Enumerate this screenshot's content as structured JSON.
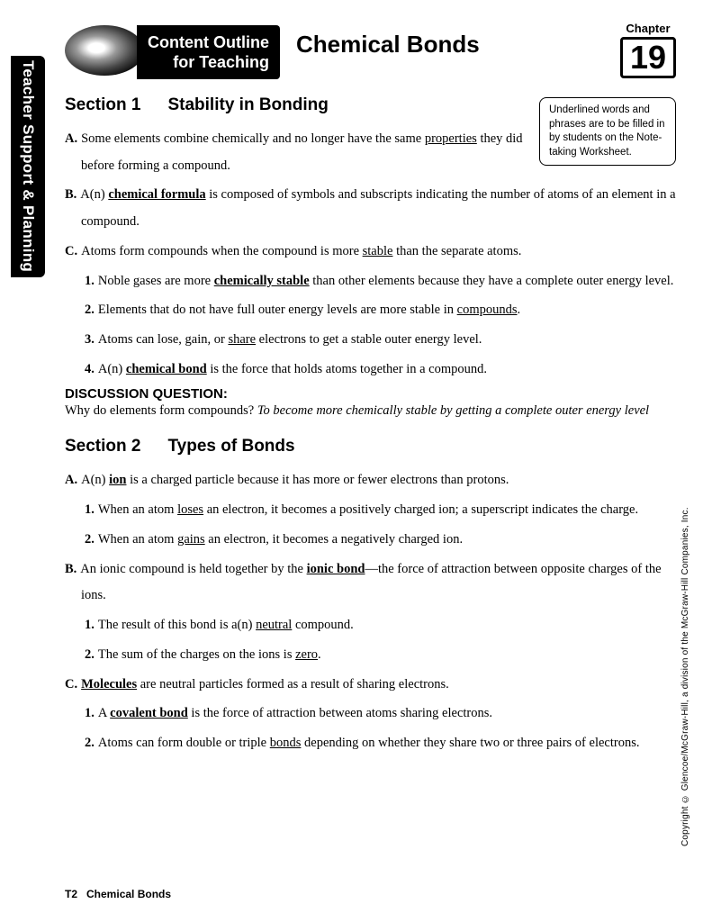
{
  "sideTab": "Teacher Support & Planning",
  "header": {
    "outline1": "Content Outline",
    "outline2": "for Teaching",
    "title": "Chemical Bonds",
    "chapterLabel": "Chapter",
    "chapterNum": "19"
  },
  "noteBox": "Underlined words and phrases are to be filled in by students on the Note-taking Worksheet.",
  "section1": {
    "num": "Section 1",
    "title": "Stability in Bonding",
    "A": {
      "lbl": "A.",
      "pre": "Some elements combine chemically and no longer have the same ",
      "u": "properties",
      "post": " they did before forming a compound."
    },
    "B": {
      "lbl": "B.",
      "pre": "A(n) ",
      "u": "chemical formula",
      "post": " is composed of symbols and subscripts indicating the number of atoms of an element in a compound."
    },
    "C": {
      "lbl": "C.",
      "pre": "Atoms form compounds when the compound is more ",
      "u": "stable",
      "post": " than the separate atoms."
    },
    "C1": {
      "lbl": "1.",
      "pre": "Noble gases are more ",
      "u": "chemically stable",
      "post": " than other elements because they have a complete outer energy level."
    },
    "C2": {
      "lbl": "2.",
      "pre": "Elements that do not have full outer energy levels are more stable in ",
      "u": "compounds",
      "post": "."
    },
    "C3": {
      "lbl": "3.",
      "pre": "Atoms can lose, gain, or ",
      "u": "share",
      "post": " electrons to get a stable outer energy level."
    },
    "C4": {
      "lbl": "4.",
      "pre": "A(n) ",
      "u": "chemical bond",
      "post": " is the force that holds atoms together in a compound."
    }
  },
  "discussion": {
    "head": "DISCUSSION QUESTION:",
    "q": "Why do elements form compounds?  ",
    "a": "To become more chemically stable by getting a complete outer energy level"
  },
  "section2": {
    "num": "Section 2",
    "title": "Types of Bonds",
    "A": {
      "lbl": "A.",
      "pre": "A(n) ",
      "u": "ion",
      "post": " is a charged particle because it has more or fewer electrons than protons."
    },
    "A1": {
      "lbl": "1.",
      "pre": "When an atom ",
      "u": "loses",
      "post": " an electron, it becomes a positively charged ion; a superscript indicates the charge."
    },
    "A2": {
      "lbl": "2.",
      "pre": "When an atom ",
      "u": "gains",
      "post": " an electron, it becomes a negatively charged ion."
    },
    "B": {
      "lbl": "B.",
      "pre": "An ionic compound is held together by the ",
      "u": "ionic bond",
      "post": "—the force of attraction between opposite charges of the ions."
    },
    "B1": {
      "lbl": "1.",
      "pre": "The result of this bond is a(n) ",
      "u": "neutral",
      "post": " compound."
    },
    "B2": {
      "lbl": "2.",
      "pre": "The sum of the charges on the ions is ",
      "u": "zero",
      "post": "."
    },
    "C": {
      "lbl": "C.",
      "u": "Molecules",
      "post": " are neutral particles formed as a result of sharing electrons."
    },
    "C1": {
      "lbl": "1.",
      "pre": "A ",
      "u": "covalent bond",
      "post": " is the force of attraction between atoms sharing electrons."
    },
    "C2": {
      "lbl": "2.",
      "pre": "Atoms can form double or triple ",
      "u": "bonds",
      "post": " depending on whether they share two or three pairs of electrons."
    }
  },
  "copyright": "Copyright © Glencoe/McGraw-Hill, a division of the McGraw-Hill Companies, Inc.",
  "footer": {
    "page": "T2",
    "title": "Chemical Bonds"
  }
}
